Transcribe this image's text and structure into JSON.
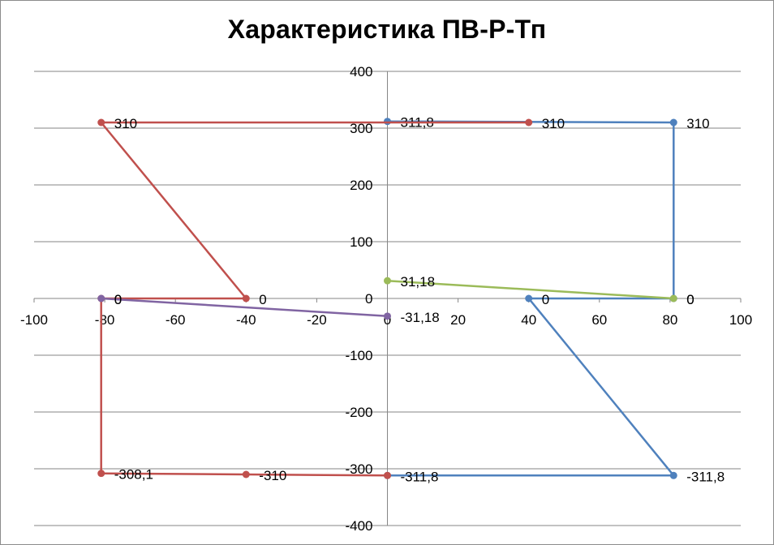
{
  "chart_data": {
    "type": "scatter",
    "title": "Характеристика ПВ-Р-Тп",
    "xlabel": "",
    "ylabel": "",
    "xlim": [
      -100,
      100
    ],
    "ylim": [
      -400,
      400
    ],
    "x_ticks": [
      -100,
      -80,
      -60,
      -40,
      -20,
      0,
      20,
      40,
      60,
      80,
      100
    ],
    "x_tick_labels": [
      "-100",
      "-80",
      "-60",
      "-40",
      "-20",
      "0",
      "20",
      "40",
      "60",
      "80",
      "100"
    ],
    "y_ticks": [
      -400,
      -300,
      -200,
      -100,
      0,
      100,
      200,
      300,
      400
    ],
    "y_tick_labels": [
      "-400",
      "-300",
      "-200",
      "-100",
      "0",
      "100",
      "200",
      "300",
      "400"
    ],
    "grid": "horizontal",
    "legend": "none",
    "series": [
      {
        "color": "#4f81bd",
        "points": [
          {
            "x": 0,
            "y": 311.8,
            "label": "311,8",
            "marker": true
          },
          {
            "x": 81,
            "y": 310,
            "label": "310",
            "marker": true
          },
          {
            "x": 81,
            "y": 0,
            "label": "0",
            "marker": true
          },
          {
            "x": 40,
            "y": 0,
            "label": "0",
            "marker": true
          },
          {
            "x": 81,
            "y": -311.8,
            "label": "-311,8",
            "marker": true
          },
          {
            "x": 0,
            "y": -311.8,
            "label": "-311,8",
            "marker": true
          }
        ]
      },
      {
        "color": "#c0504d",
        "points": [
          {
            "x": 40,
            "y": 310,
            "label": "310",
            "marker": true
          },
          {
            "x": -81,
            "y": 310,
            "label": "310",
            "marker": true
          },
          {
            "x": -40,
            "y": 0,
            "label": "0",
            "marker": true
          },
          {
            "x": -81,
            "y": 0,
            "label": "0",
            "marker": true
          },
          {
            "x": -81,
            "y": -308.1,
            "label": "-308,1",
            "marker": true
          },
          {
            "x": -40,
            "y": -310,
            "label": "-310",
            "marker": true
          },
          {
            "x": 0,
            "y": -311.8,
            "label": "",
            "marker": true
          }
        ]
      },
      {
        "color": "#9bbb59",
        "points": [
          {
            "x": 0,
            "y": 31.18,
            "label": "31,18",
            "marker": true
          },
          {
            "x": 81,
            "y": 0,
            "label": "0",
            "marker": true
          }
        ]
      },
      {
        "color": "#8064a2",
        "points": [
          {
            "x": -81,
            "y": 0,
            "label": "0",
            "marker": true
          },
          {
            "x": 0,
            "y": -31.18,
            "label": "-31,18",
            "marker": true
          }
        ]
      }
    ]
  }
}
